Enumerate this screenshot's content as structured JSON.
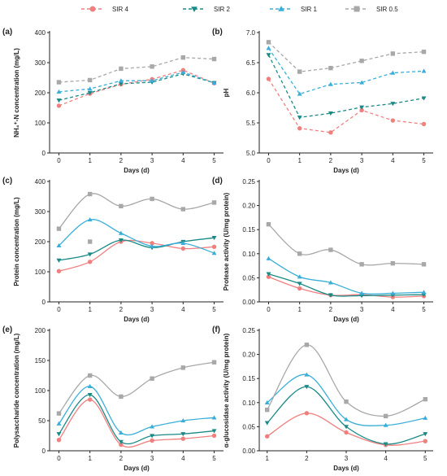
{
  "legend": {
    "placement": "top",
    "entries": [
      {
        "name": "SIR 4",
        "color": "#f08080",
        "marker": "circle"
      },
      {
        "name": "SIR 2",
        "color": "#1a8a87",
        "marker": "triangle-down"
      },
      {
        "name": "SIR 1",
        "color": "#3aaed8",
        "marker": "triangle-up"
      },
      {
        "name": "SIR 0.5",
        "color": "#a8a8a8",
        "marker": "square"
      }
    ]
  },
  "chart_data": [
    {
      "panel": "(a)",
      "type": "line",
      "line_style": "dashed",
      "x": [
        0,
        1,
        2,
        3,
        4,
        5
      ],
      "xlim": [
        -0.3,
        5.3
      ],
      "xticks": [
        0,
        1,
        2,
        3,
        4,
        5
      ],
      "xticklabels": [
        "0",
        "1",
        "2",
        "3",
        "4",
        "5"
      ],
      "ylim": [
        0,
        400
      ],
      "yticks": [
        0,
        100,
        200,
        300,
        400
      ],
      "yticklabels": [
        "0",
        "100",
        "200",
        "300",
        "400"
      ],
      "xlabel": "Days (d)",
      "ylabel": "NH₄⁺-N concentration (mg/L)",
      "series": [
        {
          "name": "SIR 4",
          "values": [
            157,
            197,
            228,
            245,
            275,
            232
          ]
        },
        {
          "name": "SIR 2",
          "values": [
            175,
            200,
            230,
            235,
            263,
            233
          ]
        },
        {
          "name": "SIR 1",
          "values": [
            203,
            213,
            240,
            240,
            268,
            233
          ]
        },
        {
          "name": "SIR 0.5",
          "values": [
            235,
            242,
            280,
            287,
            317,
            312
          ]
        }
      ]
    },
    {
      "panel": "(b)",
      "type": "line",
      "line_style": "dashed",
      "x": [
        0,
        1,
        2,
        3,
        4,
        5
      ],
      "xlim": [
        -0.3,
        5.3
      ],
      "xticks": [
        0,
        1,
        2,
        3,
        4,
        5
      ],
      "xticklabels": [
        "0",
        "1",
        "2",
        "3",
        "4",
        "5"
      ],
      "ylim": [
        5.0,
        7.0
      ],
      "yticks": [
        5.0,
        5.5,
        6.0,
        6.5,
        7.0
      ],
      "yticklabels": [
        "5.0",
        "5.5",
        "6.0",
        "6.5",
        "7.0"
      ],
      "xlabel": "Days (d)",
      "ylabel": "pH",
      "series": [
        {
          "name": "SIR 4",
          "values": [
            6.23,
            5.41,
            5.34,
            5.71,
            5.54,
            5.48
          ]
        },
        {
          "name": "SIR 2",
          "values": [
            6.63,
            5.59,
            5.66,
            5.76,
            5.82,
            5.91
          ]
        },
        {
          "name": "SIR 1",
          "values": [
            6.74,
            5.98,
            6.14,
            6.17,
            6.33,
            6.36
          ]
        },
        {
          "name": "SIR 0.5",
          "values": [
            6.84,
            6.35,
            6.41,
            6.53,
            6.65,
            6.68
          ]
        }
      ]
    },
    {
      "panel": "(c)",
      "type": "line",
      "line_style": "smooth",
      "x": [
        0,
        1,
        2,
        3,
        4,
        5
      ],
      "xlim": [
        -0.3,
        5.3
      ],
      "xticks": [
        0,
        1,
        2,
        3,
        4,
        5
      ],
      "xticklabels": [
        "0",
        "1",
        "2",
        "3",
        "4",
        "5"
      ],
      "ylim": [
        0,
        400
      ],
      "yticks": [
        0,
        100,
        200,
        300,
        400
      ],
      "yticklabels": [
        "0",
        "100",
        "200",
        "300",
        "400"
      ],
      "xlabel": "Days (d)",
      "ylabel": "Protein concentration (mg/L)",
      "series": [
        {
          "name": "SIR 4",
          "values": [
            102,
            133,
            200,
            195,
            177,
            183
          ]
        },
        {
          "name": "SIR 2",
          "values": [
            138,
            158,
            205,
            180,
            200,
            213
          ]
        },
        {
          "name": "SIR 1",
          "values": [
            187,
            273,
            228,
            185,
            195,
            162
          ]
        },
        {
          "name": "SIR 0.5",
          "values": [
            243,
            358,
            318,
            342,
            308,
            330
          ],
          "extra_points": [
            {
              "x": 1,
              "y": 200
            }
          ]
        }
      ]
    },
    {
      "panel": "(d)",
      "type": "line",
      "line_style": "smooth",
      "x": [
        0,
        1,
        2,
        3,
        4,
        5
      ],
      "xlim": [
        -0.3,
        5.3
      ],
      "xticks": [
        0,
        1,
        2,
        3,
        4,
        5
      ],
      "xticklabels": [
        "0",
        "1",
        "2",
        "3",
        "4",
        "5"
      ],
      "ylim": [
        0,
        0.25
      ],
      "yticks": [
        0,
        0.05,
        0.1,
        0.15,
        0.2,
        0.25
      ],
      "yticklabels": [
        "0.00",
        "0.05",
        "0.10",
        "0.15",
        "0.20",
        "0.25"
      ],
      "xlabel": "Days (d)",
      "ylabel": "Protease activity (U/mg protein)",
      "series": [
        {
          "name": "SIR 4",
          "values": [
            0.052,
            0.028,
            0.014,
            0.015,
            0.01,
            0.012
          ]
        },
        {
          "name": "SIR 2",
          "values": [
            0.058,
            0.038,
            0.014,
            0.013,
            0.014,
            0.015
          ]
        },
        {
          "name": "SIR 1",
          "values": [
            0.09,
            0.052,
            0.04,
            0.018,
            0.018,
            0.02
          ]
        },
        {
          "name": "SIR 0.5",
          "values": [
            0.161,
            0.1,
            0.108,
            0.078,
            0.08,
            0.078
          ]
        }
      ]
    },
    {
      "panel": "(e)",
      "type": "line",
      "line_style": "smooth",
      "x": [
        0,
        1,
        2,
        3,
        4,
        5
      ],
      "xlim": [
        -0.3,
        5.3
      ],
      "xticks": [
        0,
        1,
        2,
        3,
        4,
        5
      ],
      "xticklabels": [
        "0",
        "1",
        "2",
        "3",
        "4",
        "5"
      ],
      "ylim": [
        0,
        200
      ],
      "yticks": [
        0,
        50,
        100,
        150,
        200
      ],
      "yticklabels": [
        "0",
        "50",
        "100",
        "150",
        "200"
      ],
      "xlabel": "Days (d)",
      "ylabel": "Polysaccharide concentration (mg/L)",
      "series": [
        {
          "name": "SIR 4",
          "values": [
            18,
            85,
            10,
            17,
            20,
            25
          ]
        },
        {
          "name": "SIR 2",
          "values": [
            28,
            93,
            15,
            25,
            28,
            33
          ]
        },
        {
          "name": "SIR 1",
          "values": [
            45,
            107,
            30,
            40,
            50,
            55
          ]
        },
        {
          "name": "SIR 0.5",
          "values": [
            62,
            125,
            90,
            120,
            138,
            147
          ]
        }
      ]
    },
    {
      "panel": "(f)",
      "type": "line",
      "line_style": "smooth",
      "x": [
        1,
        2,
        3,
        4,
        5
      ],
      "xlim": [
        0.8,
        5.2
      ],
      "xticks": [
        1,
        2,
        3,
        4,
        5
      ],
      "xticklabels": [
        "1",
        "2",
        "3",
        "4",
        "5"
      ],
      "ylim": [
        0,
        0.25
      ],
      "yticks": [
        0,
        0.05,
        0.1,
        0.15,
        0.2,
        0.25
      ],
      "yticklabels": [
        "0.00",
        "0.05",
        "0.10",
        "0.15",
        "0.20",
        "0.25"
      ],
      "xlabel": "Days (d)",
      "ylabel": "α-glucosidase  activity (U/mg protein)",
      "series": [
        {
          "name": "SIR 4",
          "values": [
            0.03,
            0.078,
            0.038,
            0.012,
            0.02
          ]
        },
        {
          "name": "SIR 2",
          "values": [
            0.058,
            0.133,
            0.05,
            0.014,
            0.035
          ]
        },
        {
          "name": "SIR 1",
          "values": [
            0.1,
            0.158,
            0.065,
            0.053,
            0.068
          ]
        },
        {
          "name": "SIR 0.5",
          "values": [
            0.085,
            0.22,
            0.102,
            0.072,
            0.107
          ]
        }
      ]
    }
  ]
}
